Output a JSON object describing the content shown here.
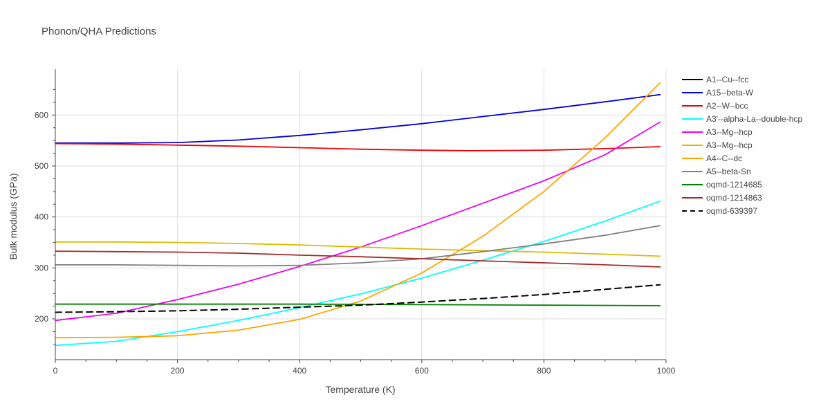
{
  "chart_data": {
    "type": "line",
    "title": "Phonon/QHA Predictions",
    "xlabel": "Temperature (K)",
    "ylabel": "Bulk modulus (GPa)",
    "xlim": [
      0,
      1000
    ],
    "ylim": [
      120,
      690
    ],
    "x_ticks": [
      0,
      200,
      400,
      600,
      800,
      1000
    ],
    "y_ticks": [
      200,
      300,
      400,
      500,
      600
    ],
    "grid": true,
    "legend_position": "right",
    "series": [
      {
        "name": "A1--Cu--fcc",
        "color": "#000000",
        "dash": "solid",
        "x": [],
        "y": []
      },
      {
        "name": "A15--beta-W",
        "color": "#0000dd",
        "dash": "solid",
        "x": [
          0,
          100,
          200,
          300,
          400,
          500,
          600,
          700,
          800,
          900,
          990
        ],
        "y": [
          545,
          545,
          546,
          551,
          560,
          571,
          583,
          597,
          611,
          626,
          640
        ]
      },
      {
        "name": "A2--W--bcc",
        "color": "#ee0000",
        "dash": "solid",
        "x": [
          0,
          100,
          200,
          300,
          400,
          500,
          600,
          680,
          800,
          900,
          990
        ],
        "y": [
          544,
          543,
          541,
          539,
          536,
          533,
          531,
          530,
          531,
          534,
          538
        ]
      },
      {
        "name": "A3'--alpha-La--double-hcp",
        "color": "#00ffff",
        "dash": "solid",
        "x": [
          0,
          100,
          200,
          300,
          400,
          500,
          600,
          700,
          800,
          900,
          990
        ],
        "y": [
          148,
          156,
          175,
          197,
          222,
          249,
          280,
          315,
          352,
          392,
          431
        ]
      },
      {
        "name": "A3--Mg--hcp",
        "color": "#ee00ee",
        "dash": "solid",
        "x": [
          0,
          100,
          200,
          300,
          400,
          500,
          600,
          700,
          800,
          900,
          990
        ],
        "y": [
          197,
          211,
          238,
          268,
          303,
          341,
          383,
          427,
          471,
          522,
          586
        ]
      },
      {
        "name": "A3--Mg--hcp",
        "color": "#ddbb00",
        "dash": "solid",
        "x": [
          0,
          100,
          200,
          300,
          400,
          500,
          600,
          700,
          800,
          900,
          990
        ],
        "y": [
          351,
          351,
          350,
          348,
          345,
          341,
          337,
          334,
          331,
          327,
          323
        ]
      },
      {
        "name": "A4--C--dc",
        "color": "#ffa500",
        "dash": "solid",
        "x": [
          0,
          100,
          200,
          300,
          400,
          500,
          600,
          700,
          800,
          900,
          990
        ],
        "y": [
          163,
          164,
          167,
          178,
          199,
          235,
          290,
          362,
          450,
          555,
          663
        ]
      },
      {
        "name": "A5--beta-Sn",
        "color": "#808080",
        "dash": "solid",
        "x": [
          0,
          100,
          200,
          300,
          400,
          500,
          600,
          700,
          800,
          900,
          990
        ],
        "y": [
          306,
          306,
          305,
          304,
          305,
          310,
          318,
          332,
          347,
          364,
          383
        ]
      },
      {
        "name": "oqmd-1214685",
        "color": "#008000",
        "dash": "solid",
        "x": [
          0,
          200,
          400,
          600,
          800,
          990
        ],
        "y": [
          229,
          229,
          229,
          228,
          227,
          226
        ]
      },
      {
        "name": "oqmd-1214863",
        "color": "#a52a2a",
        "dash": "solid",
        "x": [
          0,
          100,
          200,
          300,
          400,
          500,
          600,
          700,
          800,
          900,
          990
        ],
        "y": [
          333,
          332,
          331,
          329,
          325,
          322,
          318,
          314,
          310,
          306,
          302
        ]
      },
      {
        "name": "oqmd-639397",
        "color": "#000000",
        "dash": "dash",
        "x": [
          0,
          100,
          200,
          300,
          400,
          500,
          600,
          700,
          800,
          900,
          990
        ],
        "y": [
          213,
          214,
          216,
          219,
          223,
          227,
          233,
          240,
          248,
          258,
          267
        ]
      }
    ]
  }
}
